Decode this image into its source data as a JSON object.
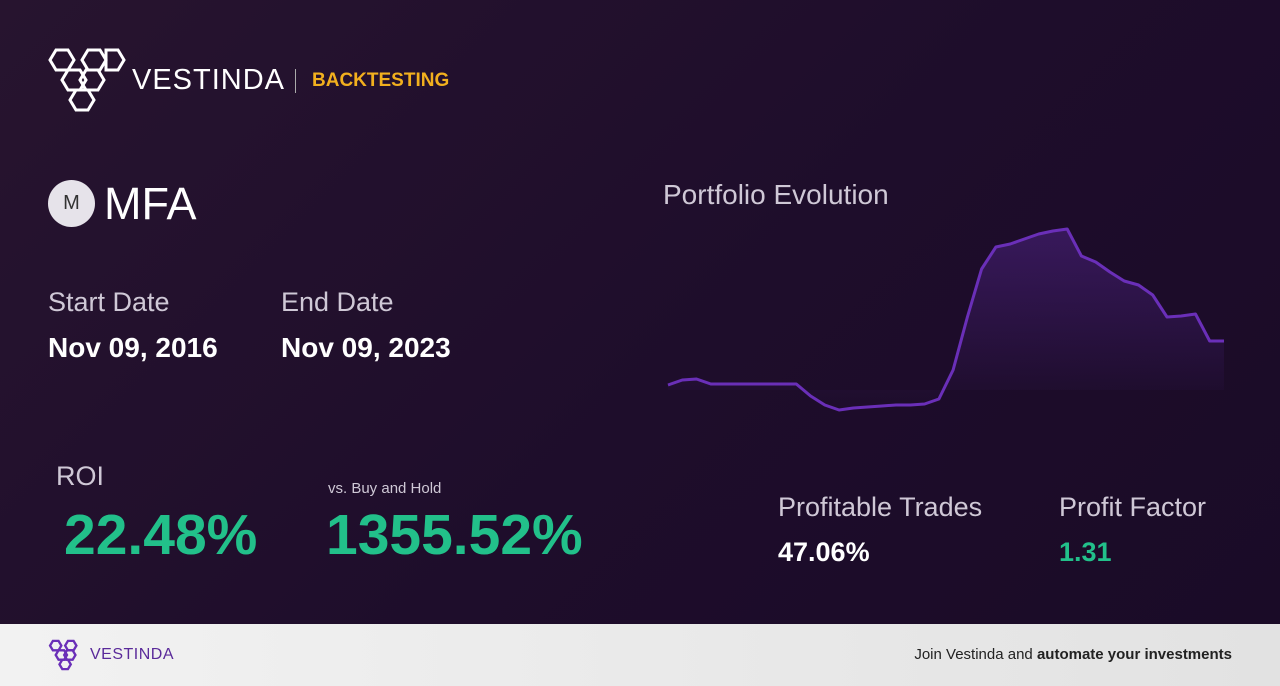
{
  "header": {
    "brand": "VESTINDA",
    "section": "BACKTESTING"
  },
  "ticker": {
    "icon": "M",
    "symbol": "MFA"
  },
  "dates": {
    "start_label": "Start Date",
    "start": "Nov 09, 2016",
    "end_label": "End Date",
    "end": "Nov 09, 2023"
  },
  "metrics": {
    "roi_label": "ROI",
    "roi": "22.48%",
    "bh_label": "vs. Buy and Hold",
    "bh": "1355.52%",
    "trades_label": "Profitable Trades",
    "trades": "47.06%",
    "pf_label": "Profit Factor",
    "pf": "1.31"
  },
  "chart_data": {
    "type": "line",
    "title": "Portfolio Evolution",
    "color": "#6a2fb8",
    "values": [
      25,
      30,
      31,
      26,
      26,
      26,
      26,
      26,
      26,
      26,
      14,
      5,
      0,
      2,
      3,
      4,
      5,
      5,
      6,
      11,
      40,
      93,
      141,
      163,
      166,
      171,
      176,
      179,
      181,
      154,
      148,
      138,
      129,
      125,
      115,
      93,
      94,
      96,
      69,
      69
    ]
  },
  "footer": {
    "brand": "VESTINDA",
    "cta": "Join Vestinda and",
    "cta_bold": "automate your investments"
  }
}
